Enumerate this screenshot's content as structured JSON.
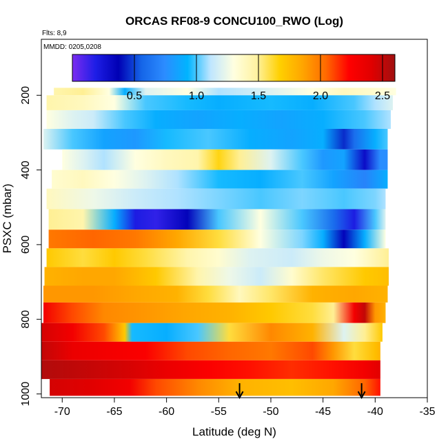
{
  "chart_data": {
    "type": "heatmap",
    "title": "ORCAS RF08-9 CONCU100_RWO (Log)",
    "flights_label": "Flts: 8,9",
    "mmdd_label": "MMDD: 0205,0208",
    "xlabel": "Latitude (deg N)",
    "ylabel": "PSXC (mbar)",
    "xlim": [
      -72,
      -35
    ],
    "ylim": [
      1010,
      50
    ],
    "x_ticks": [
      -70,
      -65,
      -60,
      -55,
      -50,
      -45,
      -40,
      -35
    ],
    "x_tick_labels": [
      "-70",
      "-65",
      "-60",
      "-55",
      "-50",
      "-45",
      "-40",
      "-35"
    ],
    "y_ticks": [
      200,
      400,
      600,
      800,
      1000
    ],
    "y_tick_labels": [
      "200",
      "400",
      "600",
      "800",
      "1000"
    ],
    "colorbar": {
      "range": [
        0.0,
        2.6
      ],
      "ticks": [
        0.5,
        1.0,
        1.5,
        2.0,
        2.5
      ],
      "tick_labels": [
        "0.5",
        "1.0",
        "1.5",
        "2.0",
        "2.5"
      ],
      "colors": [
        "#7b2cf0",
        "#1e1ee6",
        "#0000b4",
        "#1565e8",
        "#2c8cff",
        "#00b4ff",
        "#bfe6ff",
        "#ffffe0",
        "#fff2a0",
        "#ffd000",
        "#ffa500",
        "#ff6a00",
        "#ff0000",
        "#e00000",
        "#a01010"
      ]
    },
    "arrow_latitudes": [
      -53,
      -41.3
    ],
    "layers": [
      {
        "p_top": 180,
        "p_bot": 200,
        "lat_start": -70.8,
        "lat_end": -38,
        "points": [
          [
            -70.8,
            1.45
          ],
          [
            -68,
            1.5
          ],
          [
            -65.5,
            1.3
          ],
          [
            -64,
            0.9
          ],
          [
            -62,
            1.2
          ],
          [
            -58,
            1.3
          ],
          [
            -55,
            1.1
          ],
          [
            -50,
            1.2
          ],
          [
            -46,
            1.3
          ],
          [
            -43,
            1.4
          ],
          [
            -40,
            1.35
          ],
          [
            -38,
            1.3
          ]
        ]
      },
      {
        "p_top": 200,
        "p_bot": 240,
        "lat_start": -71.5,
        "lat_end": -38.3,
        "points": [
          [
            -71.5,
            1.45
          ],
          [
            -68,
            1.4
          ],
          [
            -65,
            1.3
          ],
          [
            -62,
            1.0
          ],
          [
            -58,
            0.95
          ],
          [
            -55,
            0.9
          ],
          [
            -50,
            0.95
          ],
          [
            -46,
            0.9
          ],
          [
            -42,
            1.0
          ],
          [
            -40,
            1.1
          ],
          [
            -38.3,
            1.2
          ]
        ]
      },
      {
        "p_top": 240,
        "p_bot": 290,
        "lat_start": -71.5,
        "lat_end": -38.5,
        "points": [
          [
            -71.5,
            1.3
          ],
          [
            -69,
            1.2
          ],
          [
            -67,
            1.15
          ],
          [
            -64,
            1.0
          ],
          [
            -61,
            0.9
          ],
          [
            -57,
            0.85
          ],
          [
            -53,
            0.9
          ],
          [
            -49,
            0.85
          ],
          [
            -45,
            0.9
          ],
          [
            -41,
            1.0
          ],
          [
            -38.5,
            1.1
          ]
        ]
      },
      {
        "p_top": 290,
        "p_bot": 345,
        "lat_start": -71.8,
        "lat_end": -38.8,
        "points": [
          [
            -71.8,
            1.2
          ],
          [
            -69,
            1.0
          ],
          [
            -66,
            0.85
          ],
          [
            -63,
            0.8
          ],
          [
            -60,
            0.95
          ],
          [
            -56,
            1.0
          ],
          [
            -52,
            0.9
          ],
          [
            -48,
            0.85
          ],
          [
            -45,
            0.9
          ],
          [
            -43,
            0.45
          ],
          [
            -42,
            0.6
          ],
          [
            -40,
            0.9
          ],
          [
            -38.8,
            1.0
          ]
        ]
      },
      {
        "p_top": 345,
        "p_bot": 400,
        "lat_start": -70,
        "lat_end": -38.8,
        "points": [
          [
            -70,
            1.3
          ],
          [
            -68,
            1.2
          ],
          [
            -66,
            1.1
          ],
          [
            -63,
            1.3
          ],
          [
            -60,
            1.4
          ],
          [
            -57,
            1.45
          ],
          [
            -55,
            1.65
          ],
          [
            -53,
            1.5
          ],
          [
            -50,
            1.2
          ],
          [
            -47,
            1.0
          ],
          [
            -45,
            0.8
          ],
          [
            -43,
            0.85
          ],
          [
            -41,
            0.3
          ],
          [
            -39.5,
            0.75
          ]
        ]
      },
      {
        "p_top": 400,
        "p_bot": 450,
        "lat_start": -71,
        "lat_end": -38.8,
        "points": [
          [
            -71,
            1.35
          ],
          [
            -68,
            1.4
          ],
          [
            -65,
            1.3
          ],
          [
            -62,
            1.2
          ],
          [
            -59,
            1.1
          ],
          [
            -55,
            0.95
          ],
          [
            -51,
            0.9
          ],
          [
            -47,
            1.0
          ],
          [
            -44,
            0.85
          ],
          [
            -41,
            0.7
          ],
          [
            -38.8,
            0.9
          ]
        ]
      },
      {
        "p_top": 450,
        "p_bot": 505,
        "lat_start": -71.5,
        "lat_end": -39,
        "points": [
          [
            -71.5,
            1.4
          ],
          [
            -67,
            1.25
          ],
          [
            -63,
            1.15
          ],
          [
            -59,
            1.1
          ],
          [
            -55,
            1.05
          ],
          [
            -51,
            1.0
          ],
          [
            -47,
            1.05
          ],
          [
            -43,
            1.0
          ],
          [
            -40,
            1.05
          ],
          [
            -39,
            1.1
          ]
        ]
      },
      {
        "p_top": 505,
        "p_bot": 560,
        "lat_start": -71.3,
        "lat_end": -39,
        "points": [
          [
            -71.3,
            1.5
          ],
          [
            -68,
            1.45
          ],
          [
            -65,
            0.9
          ],
          [
            -63,
            0.2
          ],
          [
            -61,
            0.15
          ],
          [
            -58,
            0.35
          ],
          [
            -55,
            1.0
          ],
          [
            -51,
            1.3
          ],
          [
            -47,
            1.0
          ],
          [
            -44,
            0.6
          ],
          [
            -42,
            0.2
          ],
          [
            -40,
            1.0
          ],
          [
            -39,
            1.2
          ]
        ]
      },
      {
        "p_top": 560,
        "p_bot": 610,
        "lat_start": -71.3,
        "lat_end": -39,
        "points": [
          [
            -71.3,
            2.0
          ],
          [
            -67,
            2.05
          ],
          [
            -63,
            2.0
          ],
          [
            -59,
            1.85
          ],
          [
            -55,
            1.6
          ],
          [
            -51,
            1.3
          ],
          [
            -47,
            1.05
          ],
          [
            -45,
            0.9
          ],
          [
            -43,
            0.35
          ],
          [
            -41,
            0.9
          ],
          [
            -39,
            1.3
          ]
        ]
      },
      {
        "p_top": 610,
        "p_bot": 660,
        "lat_start": -71.5,
        "lat_end": -38.7,
        "points": [
          [
            -71.5,
            1.7
          ],
          [
            -68,
            1.6
          ],
          [
            -65,
            1.7
          ],
          [
            -62,
            1.6
          ],
          [
            -58,
            1.45
          ],
          [
            -55,
            1.35
          ],
          [
            -52,
            1.2
          ],
          [
            -48,
            1.15
          ],
          [
            -45,
            1.25
          ],
          [
            -42,
            1.3
          ],
          [
            -38.7,
            1.5
          ]
        ]
      },
      {
        "p_top": 660,
        "p_bot": 710,
        "lat_start": -71.7,
        "lat_end": -38.7,
        "points": [
          [
            -71.7,
            1.8
          ],
          [
            -68,
            1.85
          ],
          [
            -65,
            1.85
          ],
          [
            -61,
            1.7
          ],
          [
            -57,
            1.45
          ],
          [
            -54,
            1.25
          ],
          [
            -51,
            1.15
          ],
          [
            -48,
            1.35
          ],
          [
            -45,
            1.55
          ],
          [
            -41,
            1.7
          ],
          [
            -38.7,
            1.75
          ]
        ]
      },
      {
        "p_top": 710,
        "p_bot": 755,
        "lat_start": -71.8,
        "lat_end": -38.8,
        "points": [
          [
            -71.8,
            1.9
          ],
          [
            -67,
            1.9
          ],
          [
            -63,
            1.85
          ],
          [
            -59,
            1.8
          ],
          [
            -56,
            1.6
          ],
          [
            -53,
            1.4
          ],
          [
            -50,
            1.55
          ],
          [
            -46,
            1.8
          ],
          [
            -42,
            1.85
          ],
          [
            -38.8,
            1.8
          ]
        ]
      },
      {
        "p_top": 755,
        "p_bot": 810,
        "lat_start": -71.8,
        "lat_end": -39,
        "points": [
          [
            -71.8,
            2.3
          ],
          [
            -69,
            2.1
          ],
          [
            -66,
            1.95
          ],
          [
            -62,
            1.9
          ],
          [
            -58,
            1.85
          ],
          [
            -54,
            1.8
          ],
          [
            -50,
            1.7
          ],
          [
            -46,
            1.6
          ],
          [
            -44,
            1.5
          ],
          [
            -42,
            2.3
          ],
          [
            -41,
            2.5
          ],
          [
            -40,
            1.9
          ],
          [
            -39,
            1.8
          ]
        ]
      },
      {
        "p_top": 810,
        "p_bot": 860,
        "lat_start": -72,
        "lat_end": -39.3,
        "points": [
          [
            -72,
            2.45
          ],
          [
            -69,
            2.3
          ],
          [
            -66,
            2.1
          ],
          [
            -64,
            1.7
          ],
          [
            -63.3,
            0.95
          ],
          [
            -60,
            0.9
          ],
          [
            -57,
            1.0
          ],
          [
            -54,
            1.6
          ],
          [
            -50,
            1.95
          ],
          [
            -46,
            1.8
          ],
          [
            -43,
            1.2
          ],
          [
            -41,
            1.5
          ],
          [
            -39.3,
            1.7
          ]
        ]
      },
      {
        "p_top": 860,
        "p_bot": 910,
        "lat_start": -72,
        "lat_end": -39.5,
        "points": [
          [
            -72,
            2.5
          ],
          [
            -69,
            2.35
          ],
          [
            -66,
            2.3
          ],
          [
            -62,
            2.25
          ],
          [
            -58,
            2.1
          ],
          [
            -54,
            2.05
          ],
          [
            -50,
            2.0
          ],
          [
            -46,
            2.1
          ],
          [
            -44,
            1.9
          ],
          [
            -42,
            1.6
          ],
          [
            -40,
            1.75
          ],
          [
            -39.5,
            1.8
          ]
        ]
      },
      {
        "p_top": 910,
        "p_bot": 960,
        "lat_start": -72,
        "lat_end": -39.5,
        "points": [
          [
            -72,
            2.55
          ],
          [
            -68,
            2.5
          ],
          [
            -64,
            2.45
          ],
          [
            -60,
            2.35
          ],
          [
            -56,
            2.25
          ],
          [
            -52,
            2.2
          ],
          [
            -48,
            2.15
          ],
          [
            -44,
            2.2
          ],
          [
            -41,
            2.3
          ],
          [
            -39.5,
            2.4
          ]
        ]
      },
      {
        "p_top": 960,
        "p_bot": 1005,
        "lat_start": -71.2,
        "lat_end": -39.5,
        "points": [
          [
            -71.2,
            2.45
          ],
          [
            -67,
            2.4
          ],
          [
            -63.5,
            2.3
          ],
          [
            -61,
            2.1
          ],
          [
            -57,
            1.95
          ],
          [
            -53,
            1.8
          ],
          [
            -48,
            1.75
          ],
          [
            -44,
            1.85
          ],
          [
            -41,
            2.05
          ],
          [
            -39.5,
            2.2
          ]
        ]
      }
    ]
  }
}
